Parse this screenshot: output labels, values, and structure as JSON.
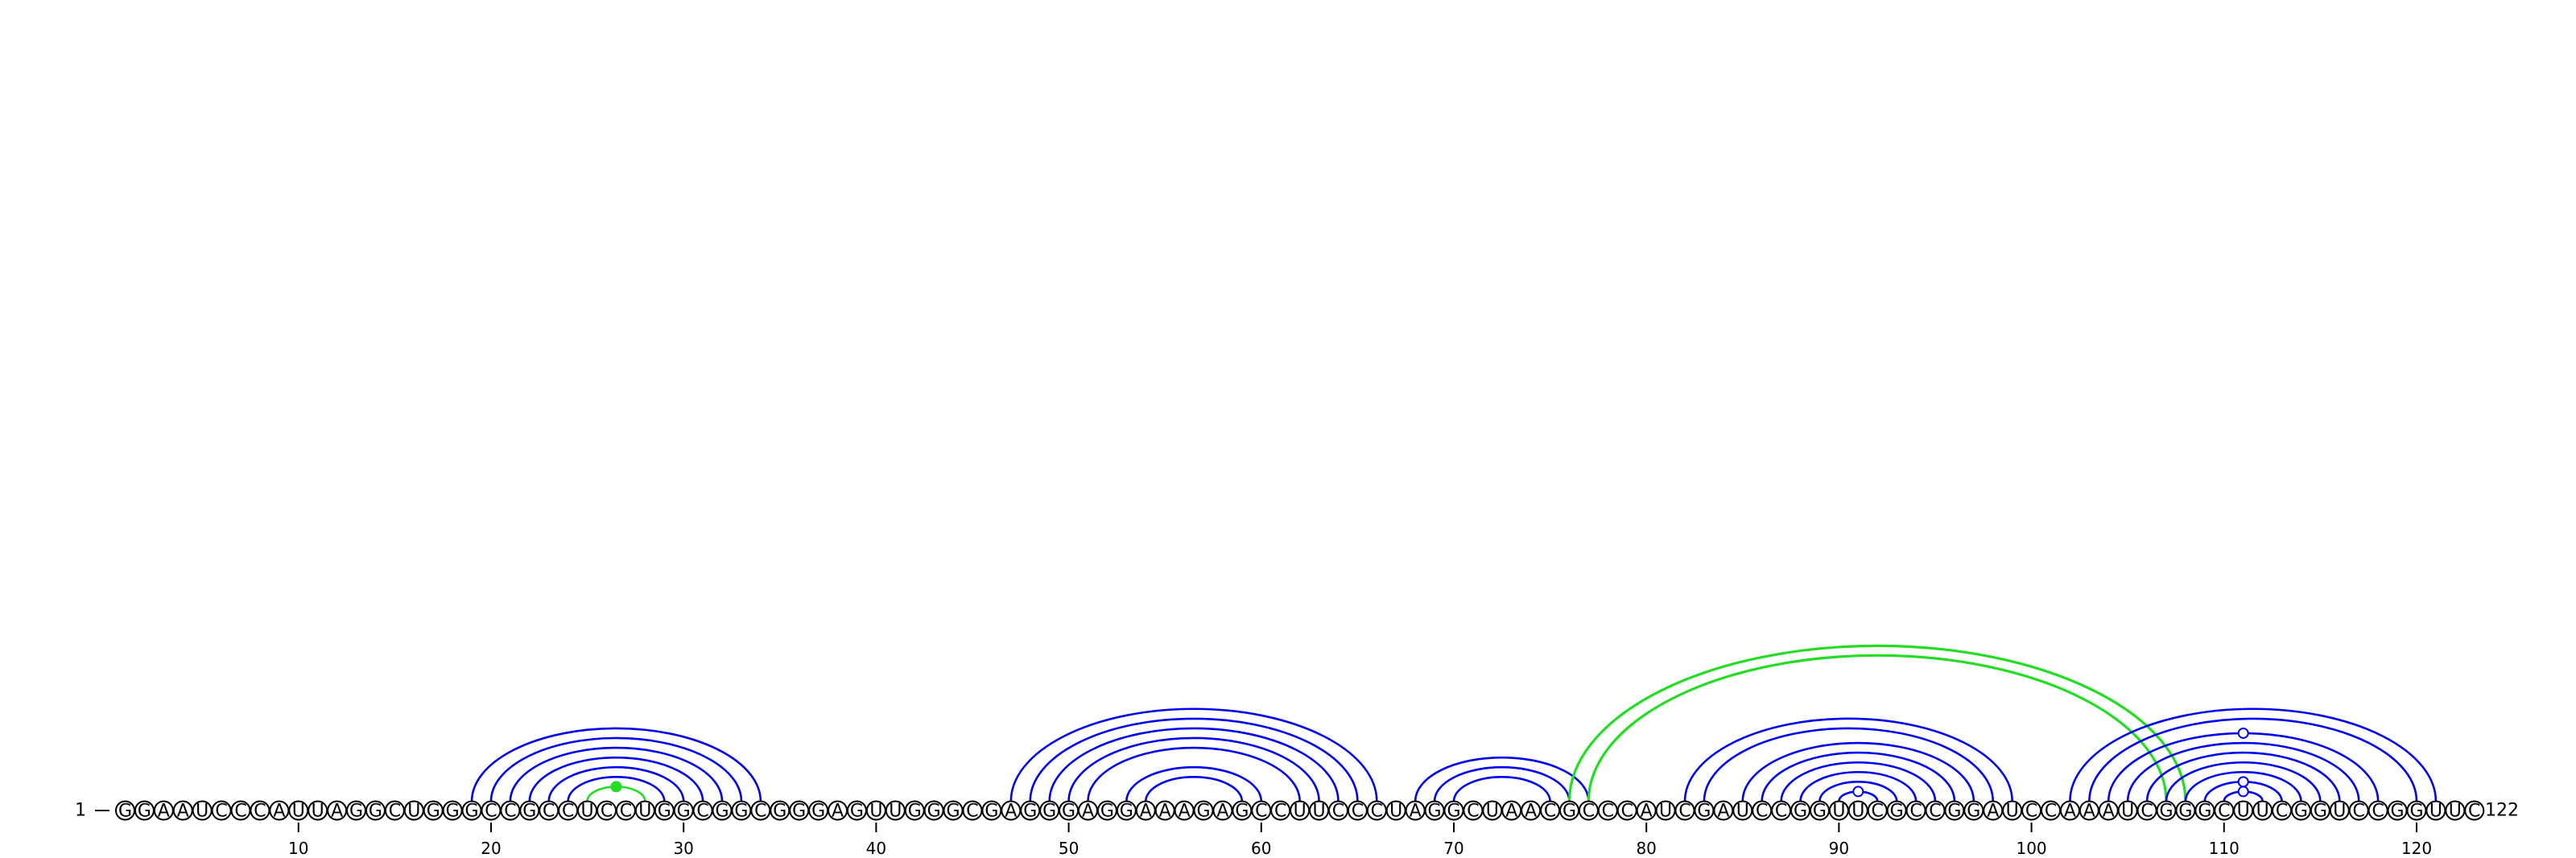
{
  "sequence": "GGAAUCCCAUUAGGCUGGGCCGCCUCCUGGCGGCGGGAGUUGGGCGAGGGAGGAAAGAGCCUUCCCUAGGCUAACGCCCAUCGAUCCGGUUCGCCGGAUCCAAAUCGGGCUUCGGUCCGGUUC",
  "start_label": "1",
  "end_label": "122",
  "tick_labels": [
    "10",
    "20",
    "30",
    "40",
    "50",
    "60",
    "70",
    "80",
    "90",
    "100",
    "110",
    "120"
  ],
  "colors": {
    "helix_arc": "#0000ee",
    "noncanonical_arc": "#22dd22",
    "nucleotide_fill": "#ffffff",
    "nucleotide_stroke": "#000000"
  },
  "pairs": [
    {
      "i": 19,
      "j": 34,
      "type": "canonical"
    },
    {
      "i": 20,
      "j": 33,
      "type": "canonical"
    },
    {
      "i": 21,
      "j": 32,
      "type": "canonical"
    },
    {
      "i": 22,
      "j": 31,
      "type": "canonical"
    },
    {
      "i": 23,
      "j": 30,
      "type": "canonical"
    },
    {
      "i": 24,
      "j": 29,
      "type": "canonical"
    },
    {
      "i": 25,
      "j": 28,
      "type": "noncanonical",
      "symbol": "filled-dot"
    },
    {
      "i": 47,
      "j": 66,
      "type": "canonical"
    },
    {
      "i": 48,
      "j": 65,
      "type": "canonical"
    },
    {
      "i": 49,
      "j": 64,
      "type": "canonical"
    },
    {
      "i": 50,
      "j": 63,
      "type": "canonical"
    },
    {
      "i": 51,
      "j": 62,
      "type": "canonical"
    },
    {
      "i": 53,
      "j": 60,
      "type": "canonical"
    },
    {
      "i": 54,
      "j": 59,
      "type": "canonical"
    },
    {
      "i": 68,
      "j": 77,
      "type": "canonical"
    },
    {
      "i": 69,
      "j": 76,
      "type": "canonical"
    },
    {
      "i": 70,
      "j": 75,
      "type": "canonical"
    },
    {
      "i": 76,
      "j": 108,
      "type": "noncanonical"
    },
    {
      "i": 77,
      "j": 107,
      "type": "noncanonical"
    },
    {
      "i": 82,
      "j": 99,
      "type": "canonical"
    },
    {
      "i": 83,
      "j": 98,
      "type": "canonical"
    },
    {
      "i": 85,
      "j": 97,
      "type": "canonical"
    },
    {
      "i": 86,
      "j": 96,
      "type": "canonical"
    },
    {
      "i": 87,
      "j": 95,
      "type": "canonical"
    },
    {
      "i": 88,
      "j": 94,
      "type": "canonical"
    },
    {
      "i": 89,
      "j": 93,
      "type": "canonical"
    },
    {
      "i": 90,
      "j": 92,
      "type": "canonical",
      "symbol": "open-circle"
    },
    {
      "i": 102,
      "j": 121,
      "type": "canonical"
    },
    {
      "i": 103,
      "j": 120,
      "type": "canonical"
    },
    {
      "i": 104,
      "j": 118,
      "type": "canonical",
      "symbol": "open-circle"
    },
    {
      "i": 105,
      "j": 117,
      "type": "canonical"
    },
    {
      "i": 106,
      "j": 116,
      "type": "canonical"
    },
    {
      "i": 107,
      "j": 115,
      "type": "canonical"
    },
    {
      "i": 108,
      "j": 114,
      "type": "canonical"
    },
    {
      "i": 109,
      "j": 113,
      "type": "canonical",
      "symbol": "open-circle"
    },
    {
      "i": 110,
      "j": 112,
      "type": "canonical",
      "symbol": "open-circle"
    }
  ]
}
